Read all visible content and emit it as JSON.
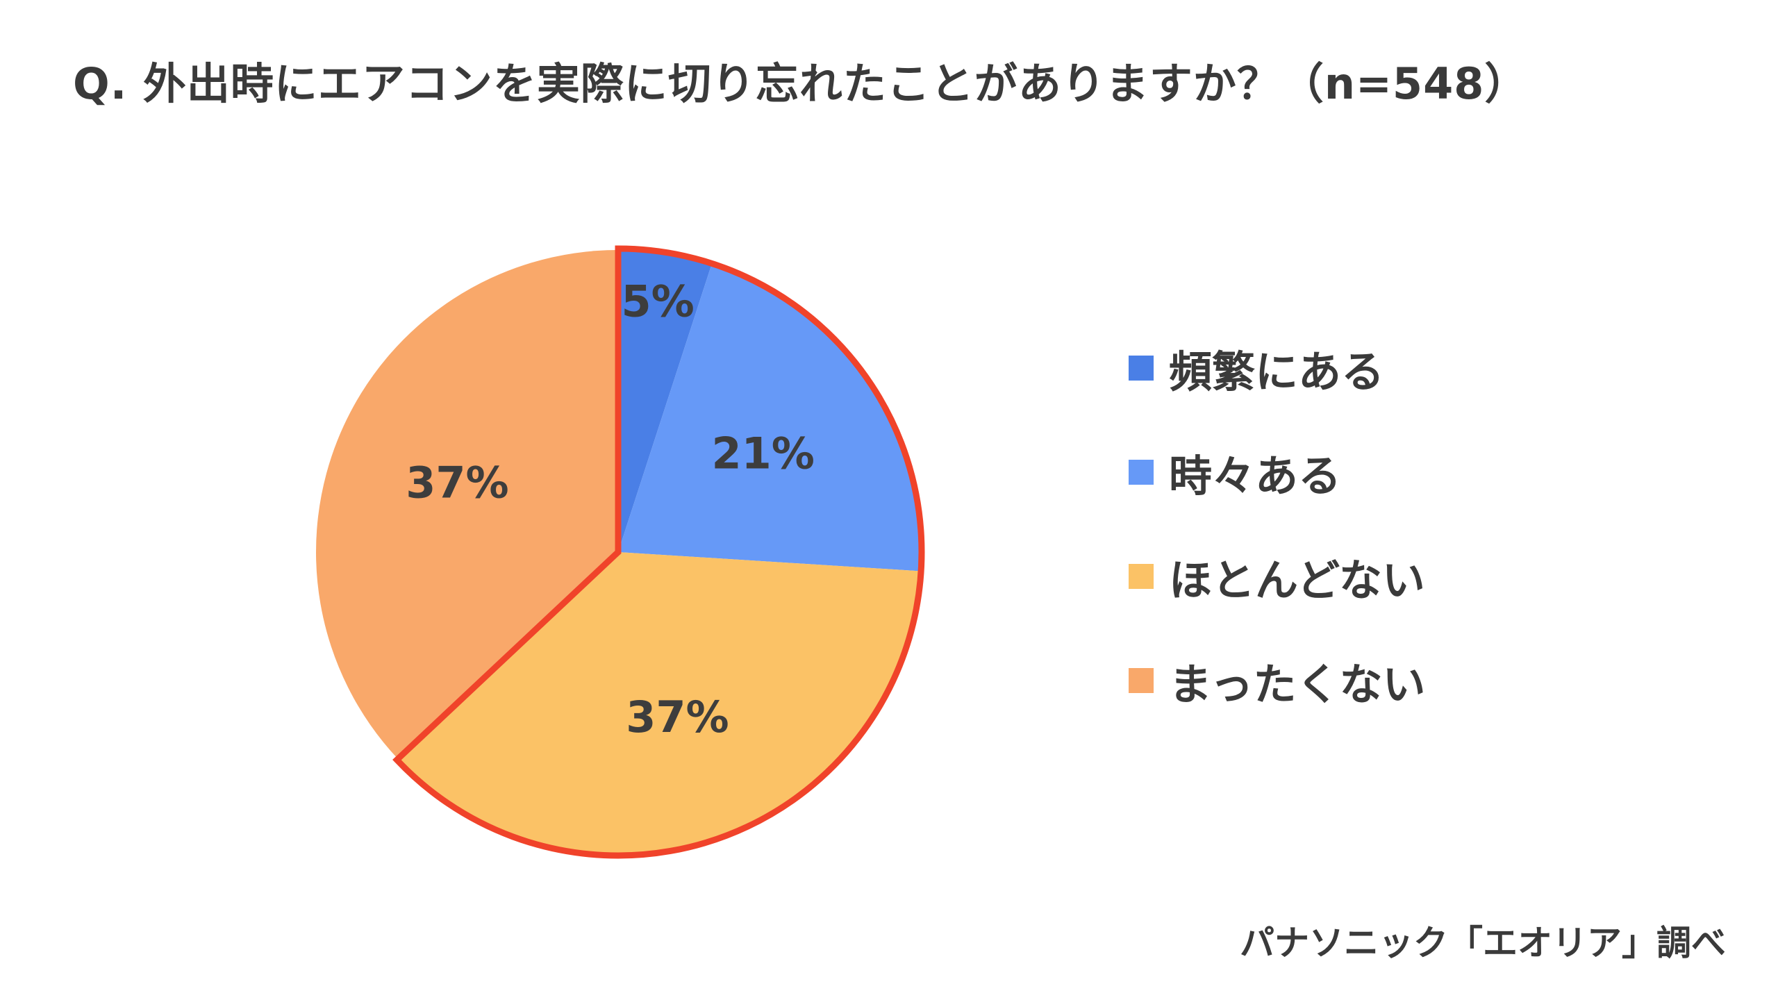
{
  "title": "Q. 外出時にエアコンを実際に切り忘れたことがありますか？（n=548）",
  "source": "パナソニック「エオリア」調べ",
  "chart_data": {
    "type": "pie",
    "title": "Q. 外出時にエアコンを実際に切り忘れたことがありますか？（n=548）",
    "categories": [
      "頻繁にある",
      "時々ある",
      "ほとんどない",
      "まったくない"
    ],
    "values": [
      5,
      21,
      37,
      37
    ],
    "data_labels": [
      "5%",
      "21%",
      "37%",
      "37%"
    ],
    "colors": [
      "#4a7fe6",
      "#6699f7",
      "#fbc266",
      "#f9a86a"
    ],
    "highlight": {
      "categories": [
        "頻繁にある",
        "時々ある",
        "ほとんどない"
      ],
      "outline_color": "#f0432a"
    },
    "legend_position": "right",
    "start_angle": "12 o'clock",
    "direction": "clockwise"
  }
}
